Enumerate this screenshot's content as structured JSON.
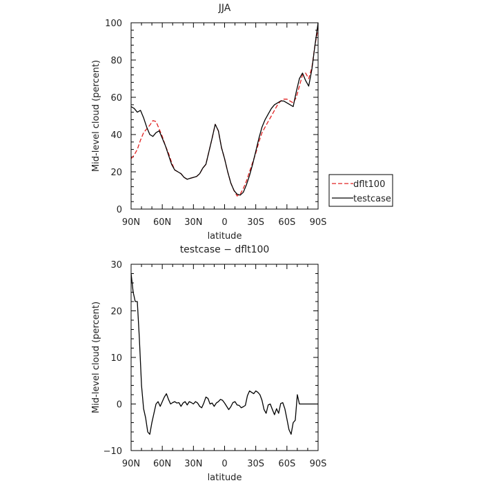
{
  "chart_data": [
    {
      "type": "line",
      "title": "JJA",
      "xlabel": "latitude",
      "ylabel": "Mid-level cloud (percent)",
      "xlim": [
        90,
        -90
      ],
      "ylim": [
        0,
        100
      ],
      "xticks": [
        90,
        60,
        30,
        0,
        -30,
        -60,
        -90
      ],
      "xtick_labels": [
        "90N",
        "60N",
        "30N",
        "0",
        "30S",
        "60S",
        "90S"
      ],
      "yticks": [
        0,
        20,
        40,
        60,
        80,
        100
      ],
      "ytick_labels": [
        "0",
        "20",
        "40",
        "60",
        "80",
        "100"
      ],
      "legend_position": "right",
      "series": [
        {
          "name": "dflt100",
          "color": "#e02020",
          "dash": "dashed",
          "x": [
            90,
            87,
            84,
            81,
            78,
            75,
            72,
            69,
            66,
            63,
            60,
            57,
            54,
            51,
            48,
            45,
            42,
            39,
            36,
            33,
            30,
            27,
            24,
            21,
            18,
            15,
            12,
            9,
            6,
            3,
            0,
            -3,
            -6,
            -9,
            -12,
            -15,
            -18,
            -21,
            -24,
            -27,
            -30,
            -33,
            -36,
            -39,
            -42,
            -45,
            -48,
            -51,
            -54,
            -57,
            -60,
            -63,
            -66,
            -69,
            -72,
            -75,
            -78,
            -81,
            -84,
            -87,
            -90
          ],
          "y": [
            27,
            29,
            32,
            37,
            41,
            43,
            45,
            47.5,
            47,
            43,
            39,
            34,
            30,
            25,
            21,
            20,
            19,
            17,
            16,
            16.5,
            17,
            17.5,
            19,
            22,
            24,
            31,
            38,
            45.5,
            42,
            33,
            27,
            20,
            14,
            10,
            7,
            8,
            11,
            15,
            20,
            25,
            30,
            36,
            41,
            44,
            47,
            50,
            53,
            56,
            58,
            59,
            59,
            58,
            57,
            60,
            66,
            72,
            73,
            70,
            76,
            88,
            97
          ]
        },
        {
          "name": "testcase",
          "color": "#000000",
          "dash": "solid",
          "x": [
            90,
            87,
            84,
            81,
            78,
            75,
            72,
            69,
            66,
            63,
            60,
            57,
            54,
            51,
            48,
            45,
            42,
            39,
            36,
            33,
            30,
            27,
            24,
            21,
            18,
            15,
            12,
            9,
            6,
            3,
            0,
            -3,
            -6,
            -9,
            -12,
            -15,
            -18,
            -21,
            -24,
            -27,
            -30,
            -33,
            -36,
            -39,
            -42,
            -45,
            -48,
            -51,
            -54,
            -57,
            -60,
            -63,
            -66,
            -69,
            -72,
            -75,
            -78,
            -81,
            -84,
            -87,
            -90
          ],
          "y": [
            55,
            54,
            52,
            53,
            49,
            44,
            40,
            39,
            41,
            42,
            38,
            34,
            29,
            24,
            21,
            20,
            19,
            17,
            16,
            16.5,
            17,
            17.5,
            19,
            22,
            24,
            31,
            38,
            45.5,
            42,
            33,
            27,
            20,
            14,
            10,
            8,
            7.5,
            9,
            13,
            18,
            24,
            31,
            38,
            44,
            48,
            51,
            54,
            56,
            57,
            58,
            58,
            57,
            56,
            55,
            63,
            70,
            73,
            69,
            66,
            75,
            88,
            100
          ]
        }
      ]
    },
    {
      "type": "line",
      "title": "testcase − dflt100",
      "xlabel": "latitude",
      "ylabel": "Mid-level cloud (percent)",
      "xlim": [
        90,
        -90
      ],
      "ylim": [
        -10,
        30
      ],
      "xticks": [
        90,
        60,
        30,
        0,
        -30,
        -60,
        -90
      ],
      "xtick_labels": [
        "90N",
        "60N",
        "30N",
        "0",
        "30S",
        "60S",
        "90S"
      ],
      "yticks": [
        -10,
        0,
        10,
        20,
        30
      ],
      "ytick_labels": [
        "−10",
        "0",
        "10",
        "20",
        "30"
      ],
      "series": [
        {
          "color": "#000000",
          "dash": "solid",
          "x": [
            90,
            88,
            86,
            84,
            82,
            80,
            78,
            76,
            74,
            72,
            70,
            68,
            66,
            64,
            62,
            60,
            58,
            56,
            54,
            52,
            50,
            48,
            46,
            44,
            42,
            40,
            38,
            36,
            34,
            32,
            30,
            28,
            26,
            24,
            22,
            20,
            18,
            16,
            14,
            12,
            10,
            8,
            6,
            4,
            2,
            0,
            -2,
            -4,
            -6,
            -8,
            -10,
            -12,
            -14,
            -16,
            -18,
            -20,
            -22,
            -24,
            -26,
            -28,
            -30,
            -32,
            -34,
            -36,
            -38,
            -40,
            -42,
            -44,
            -46,
            -48,
            -50,
            -52,
            -54,
            -56,
            -58,
            -60,
            -62,
            -64,
            -66,
            -68,
            -70,
            -72,
            -74,
            -76,
            -78,
            -80,
            -82,
            -84,
            -86,
            -88,
            -90
          ],
          "y": [
            28,
            24,
            22,
            22,
            14,
            4,
            -1,
            -3,
            -6,
            -6.5,
            -4,
            -2,
            0,
            0.5,
            -0.5,
            0.5,
            1.5,
            2.2,
            1,
            0,
            0.3,
            0.5,
            0.2,
            0.3,
            -0.5,
            0.2,
            0.5,
            -0.2,
            0.5,
            0.3,
            0,
            0.5,
            0.2,
            -0.5,
            -0.8,
            0.2,
            1.5,
            1.2,
            0,
            0.2,
            -0.5,
            0.2,
            0.5,
            1.0,
            0.8,
            0.2,
            -0.5,
            -1.2,
            -0.6,
            0.3,
            0.5,
            -0.2,
            -0.3,
            -0.8,
            -0.6,
            -0.3,
            1.8,
            2.8,
            2.5,
            2.2,
            2.8,
            2.5,
            2.0,
            0.8,
            -1.2,
            -2.0,
            -0.2,
            0.0,
            -1.2,
            -2.3,
            -1.0,
            -2.0,
            0.1,
            0.3,
            -1.0,
            -3.2,
            -5.5,
            -6.5,
            -4.0,
            -3.5,
            2.0,
            0.0,
            0.0,
            0.0,
            0.0,
            0.0,
            0.0,
            0.0,
            0.0,
            0.0,
            0.0
          ]
        }
      ]
    }
  ]
}
